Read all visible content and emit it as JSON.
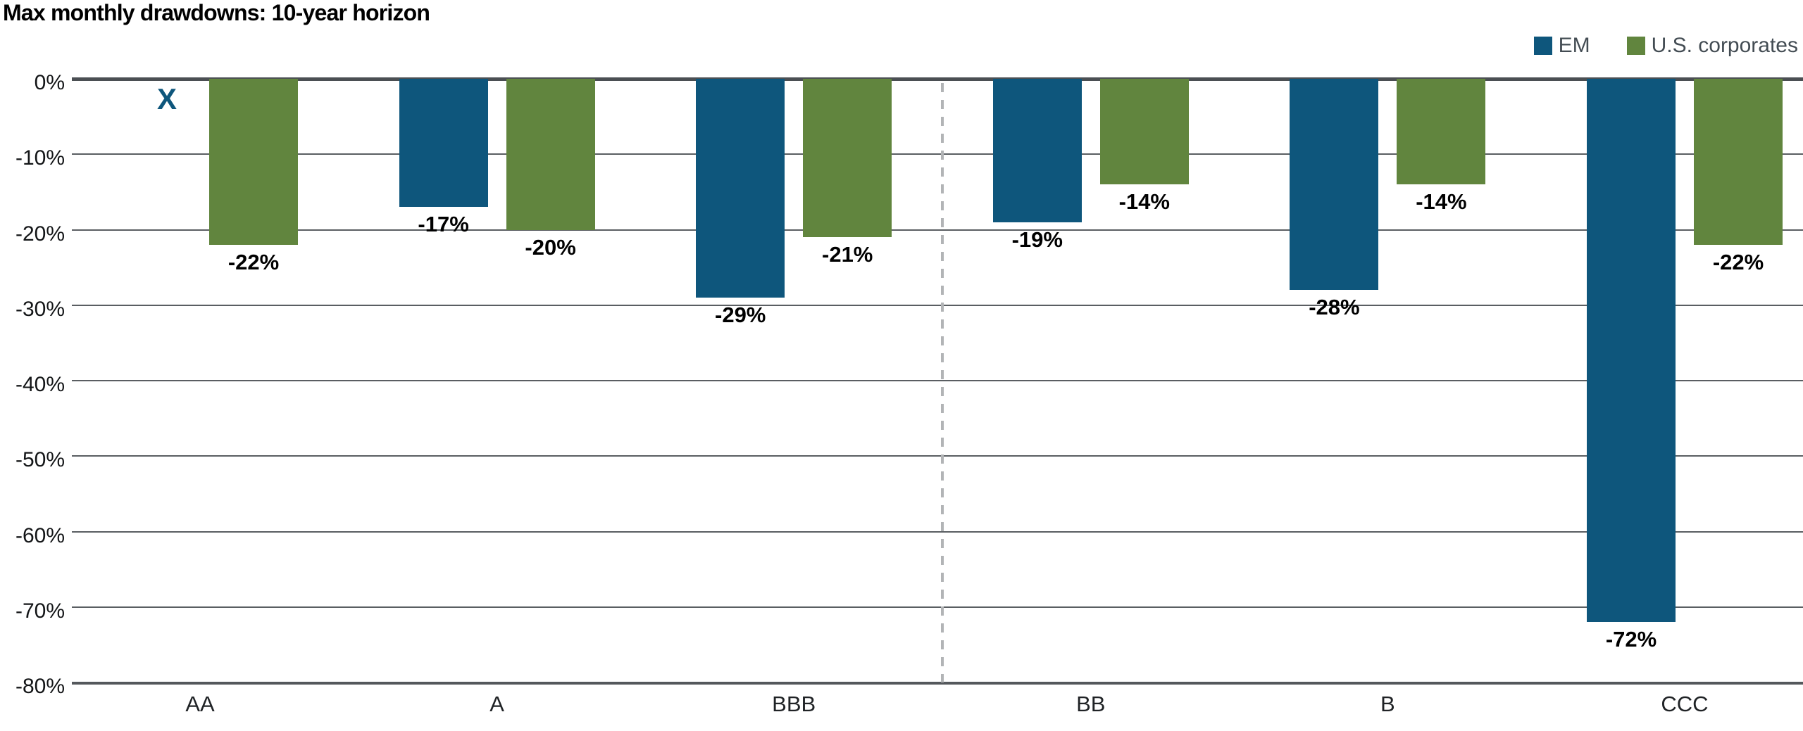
{
  "title": "Max monthly drawdowns: 10-year horizon",
  "legend": {
    "position": "top-right",
    "items": [
      {
        "label": "EM",
        "color": "#0E567C"
      },
      {
        "label": "U.S. corporates",
        "color": "#61853E"
      }
    ]
  },
  "colors": {
    "em_blue": "#0E567C",
    "us_green": "#61853E",
    "gridline": "#5a5e62",
    "zero_line": "#4b4f53",
    "separator_gray": "#b2b4b6"
  },
  "chart_data": {
    "type": "bar",
    "title": "Max monthly drawdowns: 10-year horizon",
    "categories": [
      "AA",
      "A",
      "BBB",
      "BB",
      "B",
      "CCC"
    ],
    "series": [
      {
        "name": "EM",
        "color": "#0E567C",
        "values": [
          null,
          -17,
          -29,
          -19,
          -28,
          -72
        ],
        "labels": [
          "X",
          "-17%",
          "-29%",
          "-19%",
          "-28%",
          "-72%"
        ]
      },
      {
        "name": "U.S. corporates",
        "color": "#61853E",
        "values": [
          -22,
          -20,
          -21,
          -14,
          -14,
          -22
        ],
        "labels": [
          "-22%",
          "-20%",
          "-21%",
          "-14%",
          "-14%",
          "-22%"
        ]
      }
    ],
    "no_data_marker": {
      "category": "AA",
      "series": "EM",
      "symbol": "X"
    },
    "xlabel": "",
    "ylabel": "",
    "ylim": [
      -80,
      0
    ],
    "yticks": [
      "0%",
      "-10%",
      "-20%",
      "-30%",
      "-40%",
      "-50%",
      "-60%",
      "-70%",
      "-80%"
    ],
    "ytick_values": [
      0,
      -10,
      -20,
      -30,
      -40,
      -50,
      -60,
      -70,
      -80
    ],
    "grid": true,
    "separator_after_category": "BBB",
    "legend_position": "top-right"
  }
}
